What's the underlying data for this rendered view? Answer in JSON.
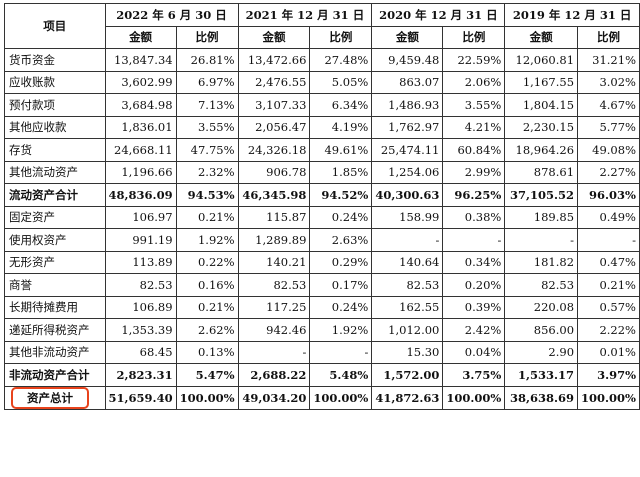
{
  "header": {
    "item": "项目",
    "periods": [
      "2022 年 6 月 30 日",
      "2021 年 12 月 31 日",
      "2020 年 12 月 31 日",
      "2019 年 12 月 31 日"
    ],
    "amount": "金额",
    "ratio": "比例"
  },
  "rows": [
    {
      "label": "货币资金",
      "bold": false,
      "cells": [
        "13,847.34",
        "26.81%",
        "13,472.66",
        "27.48%",
        "9,459.48",
        "22.59%",
        "12,060.81",
        "31.21%"
      ]
    },
    {
      "label": "应收账款",
      "bold": false,
      "cells": [
        "3,602.99",
        "6.97%",
        "2,476.55",
        "5.05%",
        "863.07",
        "2.06%",
        "1,167.55",
        "3.02%"
      ]
    },
    {
      "label": "预付款项",
      "bold": false,
      "cells": [
        "3,684.98",
        "7.13%",
        "3,107.33",
        "6.34%",
        "1,486.93",
        "3.55%",
        "1,804.15",
        "4.67%"
      ]
    },
    {
      "label": "其他应收款",
      "bold": false,
      "cells": [
        "1,836.01",
        "3.55%",
        "2,056.47",
        "4.19%",
        "1,762.97",
        "4.21%",
        "2,230.15",
        "5.77%"
      ]
    },
    {
      "label": "存货",
      "bold": false,
      "cells": [
        "24,668.11",
        "47.75%",
        "24,326.18",
        "49.61%",
        "25,474.11",
        "60.84%",
        "18,964.26",
        "49.08%"
      ]
    },
    {
      "label": "其他流动资产",
      "bold": false,
      "cells": [
        "1,196.66",
        "2.32%",
        "906.78",
        "1.85%",
        "1,254.06",
        "2.99%",
        "878.61",
        "2.27%"
      ]
    },
    {
      "label": "流动资产合计",
      "bold": true,
      "cells": [
        "48,836.09",
        "94.53%",
        "46,345.98",
        "94.52%",
        "40,300.63",
        "96.25%",
        "37,105.52",
        "96.03%"
      ]
    },
    {
      "label": "固定资产",
      "bold": false,
      "cells": [
        "106.97",
        "0.21%",
        "115.87",
        "0.24%",
        "158.99",
        "0.38%",
        "189.85",
        "0.49%"
      ]
    },
    {
      "label": "使用权资产",
      "bold": false,
      "cells": [
        "991.19",
        "1.92%",
        "1,289.89",
        "2.63%",
        "-",
        "-",
        "-",
        "-"
      ]
    },
    {
      "label": "无形资产",
      "bold": false,
      "cells": [
        "113.89",
        "0.22%",
        "140.21",
        "0.29%",
        "140.64",
        "0.34%",
        "181.82",
        "0.47%"
      ]
    },
    {
      "label": "商誉",
      "bold": false,
      "cells": [
        "82.53",
        "0.16%",
        "82.53",
        "0.17%",
        "82.53",
        "0.20%",
        "82.53",
        "0.21%"
      ]
    },
    {
      "label": "长期待摊费用",
      "bold": false,
      "cells": [
        "106.89",
        "0.21%",
        "117.25",
        "0.24%",
        "162.55",
        "0.39%",
        "220.08",
        "0.57%"
      ]
    },
    {
      "label": "递延所得税资产",
      "bold": false,
      "cells": [
        "1,353.39",
        "2.62%",
        "942.46",
        "1.92%",
        "1,012.00",
        "2.42%",
        "856.00",
        "2.22%"
      ]
    },
    {
      "label": "其他非流动资产",
      "bold": false,
      "cells": [
        "68.45",
        "0.13%",
        "-",
        "-",
        "15.30",
        "0.04%",
        "2.90",
        "0.01%"
      ]
    },
    {
      "label": "非流动资产合计",
      "bold": true,
      "cells": [
        "2,823.31",
        "5.47%",
        "2,688.22",
        "5.48%",
        "1,572.00",
        "3.75%",
        "1,533.17",
        "3.97%"
      ]
    },
    {
      "label": "资产总计",
      "bold": true,
      "highlight": true,
      "cells": [
        "51,659.40",
        "100.00%",
        "49,034.20",
        "100.00%",
        "41,872.63",
        "100.00%",
        "38,638.69",
        "100.00%"
      ]
    }
  ],
  "colors": {
    "highlight_border": "#e8431c",
    "grid": "#333333"
  }
}
